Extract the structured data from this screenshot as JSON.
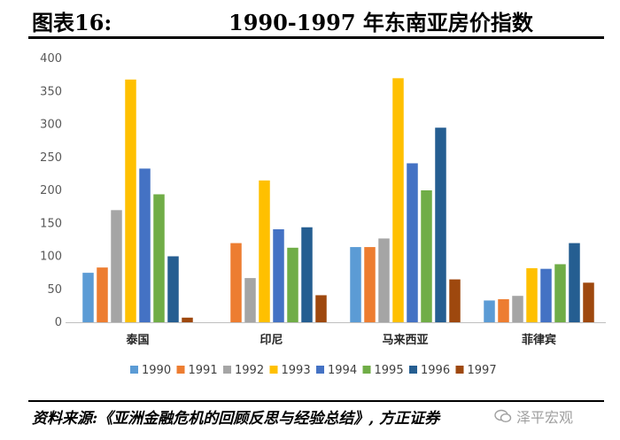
{
  "figure": {
    "label": "图表16:",
    "title": "1990-1997 年东南亚房价指数",
    "source": "资料来源:《亚洲金融危机的回顾反思与经验总结》, 方正证券",
    "watermark": "泽平宏观"
  },
  "chart_data": {
    "type": "bar",
    "categories": [
      "泰国",
      "印尼",
      "马来西亚",
      "菲律宾"
    ],
    "series": [
      {
        "name": "1990",
        "color": "#5b9bd5",
        "values": [
          75,
          0,
          114,
          33
        ]
      },
      {
        "name": "1991",
        "color": "#ed7d31",
        "values": [
          83,
          120,
          114,
          35
        ]
      },
      {
        "name": "1992",
        "color": "#a5a5a5",
        "values": [
          170,
          67,
          127,
          40
        ]
      },
      {
        "name": "1993",
        "color": "#ffc000",
        "values": [
          368,
          215,
          370,
          82
        ]
      },
      {
        "name": "1994",
        "color": "#4472c4",
        "values": [
          233,
          141,
          241,
          81
        ]
      },
      {
        "name": "1995",
        "color": "#70ad47",
        "values": [
          194,
          113,
          200,
          88
        ]
      },
      {
        "name": "1996",
        "color": "#255e91",
        "values": [
          100,
          144,
          295,
          120
        ]
      },
      {
        "name": "1997",
        "color": "#9e480e",
        "values": [
          7,
          41,
          65,
          60
        ]
      }
    ],
    "ylim": [
      0,
      400
    ],
    "yticks": [
      "0",
      "50",
      "100",
      "150",
      "200",
      "250",
      "300",
      "350",
      "400"
    ],
    "grid": false,
    "legend_position": "bottom"
  }
}
